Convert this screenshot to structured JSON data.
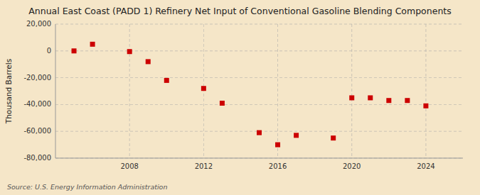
{
  "chart_data": {
    "type": "scatter",
    "title": "Annual East Coast (PADD 1) Refinery Net Input of Conventional Gasoline Blending Components",
    "ylabel": "Thousand Barrels",
    "source": "Source: U.S. Energy Information Administration",
    "x": [
      2005,
      2006,
      2008,
      2009,
      2010,
      2012,
      2013,
      2015,
      2016,
      2017,
      2019,
      2020,
      2021,
      2022,
      2023,
      2024
    ],
    "values": [
      0,
      5000,
      -500,
      -8000,
      -22000,
      -28000,
      -39000,
      -61000,
      -70000,
      -63000,
      -65000,
      -35000,
      -35000,
      -37000,
      -37000,
      -41000
    ],
    "color": "#cc0000",
    "marker": "square",
    "xlim": [
      2004,
      2026
    ],
    "xticks": [
      2008,
      2012,
      2016,
      2020,
      2024
    ],
    "ylim": [
      -80000,
      20000
    ],
    "yticks": [
      {
        "value": -80000,
        "label": "-80,000"
      },
      {
        "value": -60000,
        "label": "-60,000"
      },
      {
        "value": -40000,
        "label": "-40,000"
      },
      {
        "value": -20000,
        "label": "-20,000"
      },
      0,
      {
        "value": 20000,
        "label": "20,000"
      }
    ],
    "grid": true
  }
}
